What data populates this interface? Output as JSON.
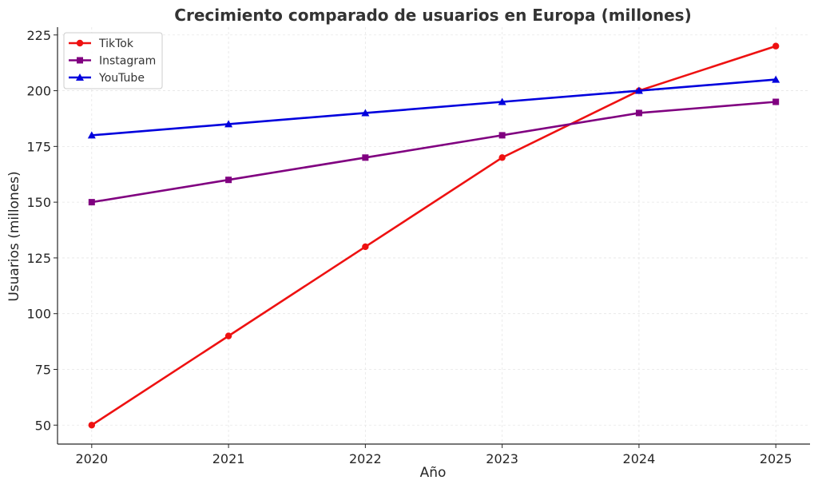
{
  "chart_data": {
    "type": "line",
    "title": "Crecimiento comparado de usuarios en Europa (millones)",
    "xlabel": "Año",
    "ylabel": "Usuarios (millones)",
    "x": [
      2020,
      2021,
      2022,
      2023,
      2024,
      2025
    ],
    "x_tick_labels": [
      "2020",
      "2021",
      "2022",
      "2023",
      "2024",
      "2025"
    ],
    "y_ticks": [
      50,
      75,
      100,
      125,
      150,
      175,
      200,
      225
    ],
    "y_tick_labels": [
      "50",
      "75",
      "100",
      "125",
      "150",
      "175",
      "200",
      "225"
    ],
    "xlim": [
      2019.75,
      2025.25
    ],
    "ylim": [
      41.5,
      228.5
    ],
    "grid": true,
    "legend_position": "top-left",
    "series": [
      {
        "name": "TikTok",
        "color": "#ee1111",
        "marker": "circle",
        "values": [
          50,
          90,
          130,
          170,
          200,
          220
        ]
      },
      {
        "name": "Instagram",
        "color": "#800080",
        "marker": "square",
        "values": [
          150,
          160,
          170,
          180,
          190,
          195
        ]
      },
      {
        "name": "YouTube",
        "color": "#0000dd",
        "marker": "triangle",
        "values": [
          180,
          185,
          190,
          195,
          200,
          205
        ]
      }
    ]
  }
}
